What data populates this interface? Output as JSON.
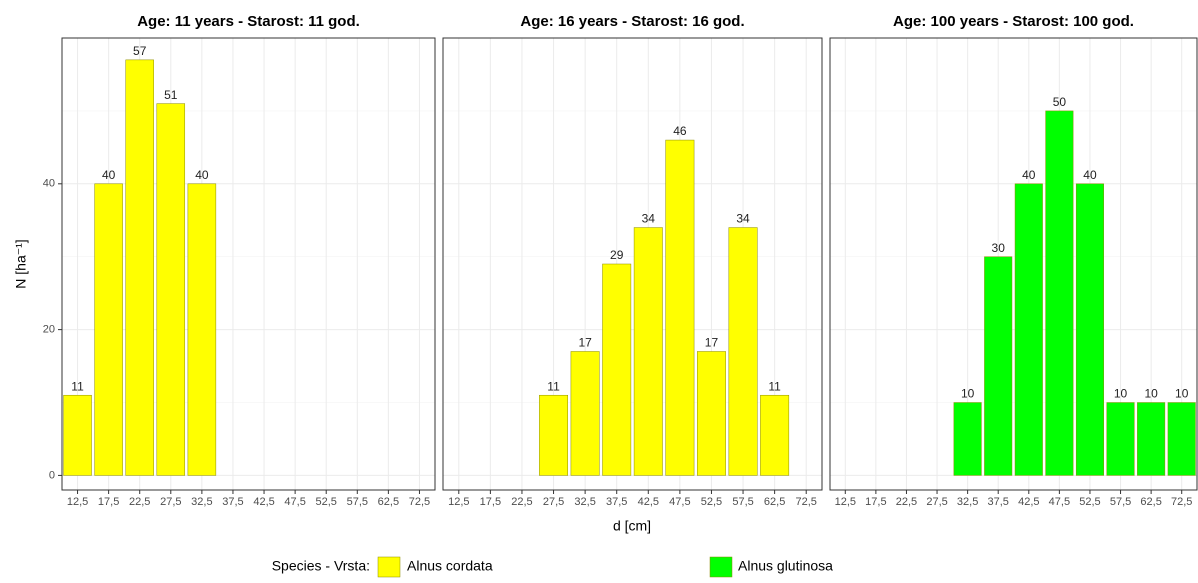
{
  "chart_data": {
    "type": "bar",
    "x_label": "d [cm]",
    "y_label": "N [ha⁻¹]",
    "legend_title": "Species - Vrsta:",
    "series": [
      {
        "name": "Alnus cordata",
        "color": "#ffff00"
      },
      {
        "name": "Alnus glutinosa",
        "color": "#00ff00"
      }
    ],
    "categories": [
      "12,5",
      "17,5",
      "22,5",
      "27,5",
      "32,5",
      "37,5",
      "42,5",
      "47,5",
      "52,5",
      "57,5",
      "62,5",
      "72,5"
    ],
    "ylim": [
      -2,
      60
    ],
    "yticks": [
      0,
      20,
      40
    ],
    "y_minor_ticks": [
      10,
      30,
      50
    ],
    "grid": true,
    "panels": [
      {
        "title": "Age: 11 years - Starost: 11 god.",
        "series": 0,
        "values": [
          11,
          40,
          57,
          51,
          40,
          null,
          null,
          null,
          null,
          null,
          null,
          null
        ]
      },
      {
        "title": "Age: 16 years - Starost: 16 god.",
        "series": 0,
        "values": [
          null,
          null,
          null,
          11,
          17,
          29,
          34,
          46,
          17,
          34,
          11,
          null
        ]
      },
      {
        "title": "Age: 100 years - Starost: 100 god.",
        "series": 1,
        "values": [
          null,
          null,
          null,
          null,
          10,
          30,
          40,
          50,
          40,
          10,
          10,
          10
        ]
      }
    ]
  }
}
